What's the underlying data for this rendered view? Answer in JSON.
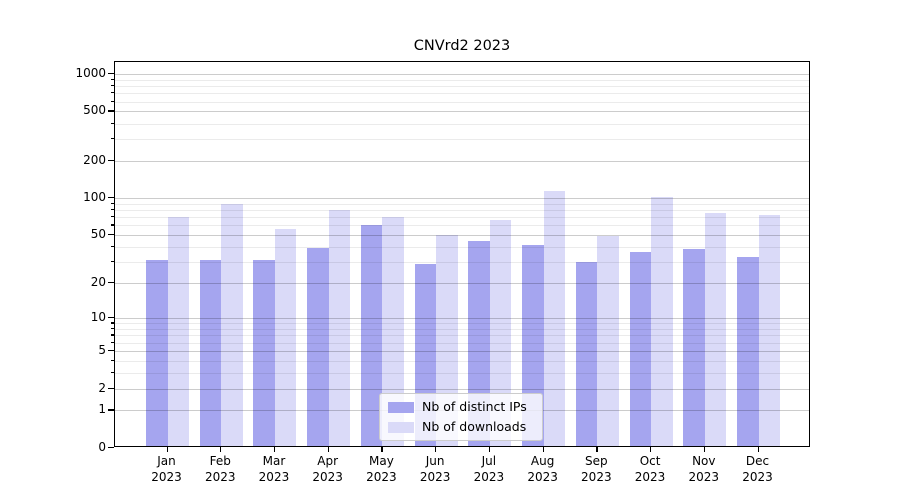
{
  "figure": {
    "title": "CNVrd2 2023"
  },
  "chart_data": {
    "type": "bar",
    "title": "CNVrd2 2023",
    "x_categories": [
      {
        "month": "Jan",
        "year": "2023"
      },
      {
        "month": "Feb",
        "year": "2023"
      },
      {
        "month": "Mar",
        "year": "2023"
      },
      {
        "month": "Apr",
        "year": "2023"
      },
      {
        "month": "May",
        "year": "2023"
      },
      {
        "month": "Jun",
        "year": "2023"
      },
      {
        "month": "Jul",
        "year": "2023"
      },
      {
        "month": "Aug",
        "year": "2023"
      },
      {
        "month": "Sep",
        "year": "2023"
      },
      {
        "month": "Oct",
        "year": "2023"
      },
      {
        "month": "Nov",
        "year": "2023"
      },
      {
        "month": "Dec",
        "year": "2023"
      }
    ],
    "series": [
      {
        "name": "Nb of distinct IPs",
        "color": "#a5a5ef",
        "values": [
          30,
          30,
          30,
          38,
          58,
          28,
          43,
          40,
          29,
          35,
          37,
          32
        ]
      },
      {
        "name": "Nb of downloads",
        "color": "#dadaf8",
        "values": [
          68,
          87,
          54,
          77,
          68,
          48,
          64,
          110,
          47,
          98,
          73,
          70
        ]
      }
    ],
    "y_axis": {
      "scale": "log1p",
      "major_ticks": [
        0,
        1,
        2,
        5,
        10,
        20,
        50,
        100,
        200,
        500,
        1000
      ],
      "minor_ticks": [
        3,
        4,
        6,
        7,
        8,
        9,
        30,
        40,
        60,
        70,
        80,
        90,
        300,
        400,
        600,
        700,
        800,
        900
      ],
      "axis_top_value": 1250
    },
    "legend": {
      "position": "bottom-center"
    },
    "colors": {
      "axis": "#000000",
      "grid_major": "#cccccc",
      "grid_minor": "#ebebeb",
      "background": "#ffffff"
    }
  }
}
